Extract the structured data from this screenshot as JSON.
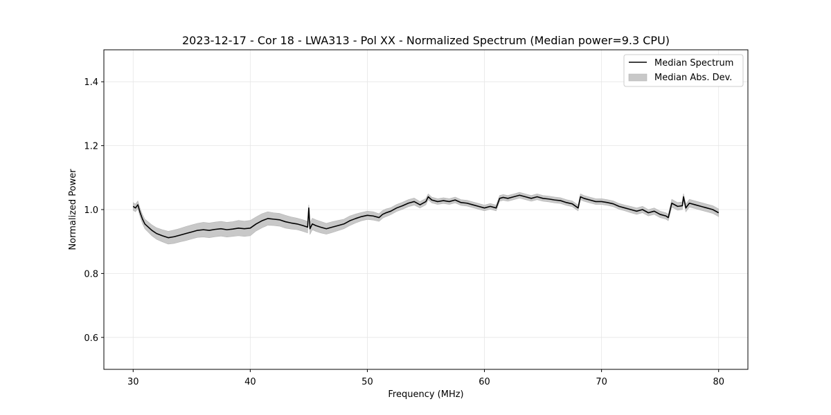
{
  "chart_data": {
    "type": "line",
    "title": "2023-12-17 - Cor 18 - LWA313 - Pol XX - Normalized Spectrum (Median power=9.3 CPU)",
    "xlabel": "Frequency (MHz)",
    "ylabel": "Normalized Power",
    "xlim": [
      27.5,
      82.5
    ],
    "ylim": [
      0.5,
      1.5
    ],
    "xticks": [
      30,
      40,
      50,
      60,
      70,
      80
    ],
    "yticks": [
      0.6,
      0.8,
      1.0,
      1.2,
      1.4
    ],
    "xtick_labels": [
      "30",
      "40",
      "50",
      "60",
      "70",
      "80"
    ],
    "ytick_labels": [
      "0.6",
      "0.8",
      "1.0",
      "1.2",
      "1.4"
    ],
    "grid": true,
    "legend_position": "top-right",
    "series": [
      {
        "name": "Median Spectrum",
        "kind": "line",
        "color": "#000000",
        "x": [
          30.0,
          30.2,
          30.4,
          30.6,
          30.8,
          31.0,
          31.3,
          31.6,
          32.0,
          32.5,
          33.0,
          33.5,
          34.0,
          34.5,
          35.0,
          35.5,
          36.0,
          36.5,
          37.0,
          37.5,
          38.0,
          38.5,
          39.0,
          39.5,
          40.0,
          40.5,
          41.0,
          41.5,
          42.0,
          42.5,
          43.0,
          43.5,
          44.0,
          44.5,
          44.9,
          45.0,
          45.1,
          45.3,
          45.6,
          46.0,
          46.5,
          47.0,
          47.5,
          48.0,
          48.5,
          49.0,
          49.5,
          50.0,
          50.5,
          51.0,
          51.3,
          51.6,
          52.0,
          52.5,
          53.0,
          53.5,
          54.0,
          54.5,
          55.0,
          55.2,
          55.5,
          56.0,
          56.5,
          57.0,
          57.5,
          58.0,
          58.5,
          59.0,
          59.5,
          60.0,
          60.5,
          61.0,
          61.3,
          61.6,
          62.0,
          62.5,
          63.0,
          63.5,
          64.0,
          64.5,
          65.0,
          65.5,
          66.0,
          66.5,
          67.0,
          67.5,
          68.0,
          68.2,
          68.5,
          69.0,
          69.5,
          70.0,
          70.5,
          71.0,
          71.5,
          72.0,
          72.5,
          73.0,
          73.5,
          74.0,
          74.5,
          75.0,
          75.5,
          75.7,
          76.0,
          76.5,
          76.9,
          77.0,
          77.2,
          77.5,
          78.0,
          78.5,
          79.0,
          79.5,
          80.0
        ],
        "values": [
          1.01,
          1.005,
          1.015,
          0.99,
          0.97,
          0.955,
          0.945,
          0.935,
          0.925,
          0.918,
          0.912,
          0.915,
          0.92,
          0.925,
          0.93,
          0.935,
          0.937,
          0.935,
          0.938,
          0.94,
          0.937,
          0.939,
          0.942,
          0.94,
          0.942,
          0.955,
          0.965,
          0.972,
          0.97,
          0.968,
          0.962,
          0.958,
          0.955,
          0.95,
          0.945,
          1.005,
          0.94,
          0.955,
          0.95,
          0.945,
          0.94,
          0.945,
          0.95,
          0.955,
          0.965,
          0.972,
          0.978,
          0.982,
          0.98,
          0.975,
          0.985,
          0.99,
          0.995,
          1.005,
          1.012,
          1.02,
          1.025,
          1.015,
          1.025,
          1.04,
          1.03,
          1.025,
          1.028,
          1.025,
          1.03,
          1.022,
          1.02,
          1.015,
          1.01,
          1.005,
          1.01,
          1.005,
          1.035,
          1.038,
          1.035,
          1.04,
          1.045,
          1.04,
          1.035,
          1.04,
          1.035,
          1.033,
          1.03,
          1.028,
          1.022,
          1.018,
          1.005,
          1.04,
          1.035,
          1.03,
          1.025,
          1.025,
          1.022,
          1.018,
          1.01,
          1.005,
          1.0,
          0.995,
          1.0,
          0.99,
          0.995,
          0.985,
          0.98,
          0.975,
          1.02,
          1.01,
          1.012,
          1.04,
          1.005,
          1.02,
          1.015,
          1.01,
          1.005,
          1.0,
          0.99
        ]
      },
      {
        "name": "Median Abs. Dev.",
        "kind": "band",
        "color": "#c8c8c8",
        "band_halfwidth": [
          0.012,
          0.012,
          0.012,
          0.013,
          0.014,
          0.015,
          0.016,
          0.017,
          0.018,
          0.019,
          0.02,
          0.021,
          0.021,
          0.022,
          0.022,
          0.022,
          0.023,
          0.023,
          0.023,
          0.023,
          0.023,
          0.023,
          0.024,
          0.024,
          0.024,
          0.022,
          0.022,
          0.021,
          0.02,
          0.02,
          0.02,
          0.019,
          0.018,
          0.018,
          0.018,
          0.01,
          0.018,
          0.018,
          0.018,
          0.018,
          0.017,
          0.017,
          0.016,
          0.015,
          0.015,
          0.014,
          0.013,
          0.013,
          0.013,
          0.012,
          0.012,
          0.012,
          0.011,
          0.011,
          0.011,
          0.011,
          0.011,
          0.01,
          0.01,
          0.009,
          0.009,
          0.009,
          0.009,
          0.009,
          0.009,
          0.009,
          0.009,
          0.009,
          0.009,
          0.009,
          0.009,
          0.009,
          0.009,
          0.009,
          0.009,
          0.009,
          0.009,
          0.009,
          0.009,
          0.009,
          0.009,
          0.009,
          0.009,
          0.009,
          0.009,
          0.009,
          0.009,
          0.009,
          0.009,
          0.009,
          0.009,
          0.009,
          0.009,
          0.009,
          0.009,
          0.009,
          0.01,
          0.01,
          0.01,
          0.01,
          0.01,
          0.01,
          0.01,
          0.01,
          0.012,
          0.012,
          0.012,
          0.01,
          0.012,
          0.012,
          0.012,
          0.012,
          0.012,
          0.012,
          0.012
        ]
      }
    ]
  }
}
